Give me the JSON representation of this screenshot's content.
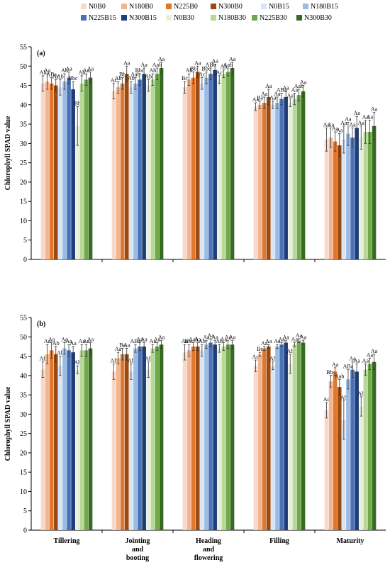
{
  "legend": {
    "entries": [
      {
        "name": "N0B0",
        "color": "#f7d9c9"
      },
      {
        "name": "N180B0",
        "color": "#f2b591"
      },
      {
        "name": "N225B0",
        "color": "#e0772f"
      },
      {
        "name": "N300B0",
        "color": "#9b4a12"
      },
      {
        "name": "N0B15",
        "color": "#d9e5f3"
      },
      {
        "name": "N180B15",
        "color": "#9bbbe3"
      },
      {
        "name": "N225B15",
        "color": "#4a72b8"
      },
      {
        "name": "N300B15",
        "color": "#1f3d78"
      },
      {
        "name": "N0B30",
        "color": "#e8f0dc"
      },
      {
        "name": "N180B30",
        "color": "#b9d79a"
      },
      {
        "name": "N225B30",
        "color": "#6fa94a"
      },
      {
        "name": "N300B30",
        "color": "#386b22"
      }
    ]
  },
  "chart_data": [
    {
      "type": "bar",
      "panel_label": "(a)",
      "ylabel": "Chlorophyll SPAD value",
      "ylim": [
        0,
        55
      ],
      "yticks": [
        0,
        5,
        10,
        15,
        20,
        25,
        30,
        35,
        40,
        45,
        50,
        55
      ],
      "categories": [
        "Tillering",
        "Jointing and booting",
        "Heading and flowering",
        "Filling",
        "Maturity"
      ],
      "series": [
        {
          "name": "N0B0",
          "values": [
            45.5,
            43.5,
            44.5,
            39.5,
            31.0
          ],
          "errors": [
            2.0,
            2.0,
            1.5,
            1.0,
            3.0
          ],
          "labels": [
            "Ab",
            "Ac",
            "Bc",
            "Aa",
            "Aa"
          ]
        },
        {
          "name": "N180B0",
          "values": [
            46.0,
            44.5,
            46.5,
            40.0,
            31.5
          ],
          "errors": [
            2.0,
            1.5,
            1.5,
            1.0,
            2.5
          ],
          "labels": [
            "Aa",
            "Ab",
            "Ab",
            "Ba",
            "Aa"
          ]
        },
        {
          "name": "N225B0",
          "values": [
            45.5,
            45.5,
            47.0,
            40.5,
            30.5
          ],
          "errors": [
            1.5,
            1.5,
            1.5,
            1.5,
            2.5
          ],
          "labels": [
            "ABa",
            "Bb",
            "Bb",
            "Aa",
            "Aa"
          ]
        },
        {
          "name": "N300B0",
          "values": [
            45.0,
            48.0,
            48.5,
            42.0,
            29.5
          ],
          "errors": [
            1.5,
            2.0,
            1.5,
            2.0,
            3.0
          ],
          "labels": [
            "Ac",
            "Aa",
            "Aa",
            "Aa",
            "Aa"
          ]
        },
        {
          "name": "N0B15",
          "values": [
            44.5,
            44.5,
            45.5,
            40.0,
            31.0
          ],
          "errors": [
            2.0,
            1.5,
            1.5,
            1.0,
            3.5
          ],
          "labels": [
            "Ab",
            "Ab",
            "Ac",
            "Aa",
            "Aa"
          ]
        },
        {
          "name": "N180B15",
          "values": [
            46.0,
            45.5,
            47.0,
            40.5,
            32.5
          ],
          "errors": [
            2.0,
            1.5,
            1.5,
            1.5,
            3.0
          ],
          "labels": [
            "Ab",
            "Aab",
            "Bbc",
            "Aa",
            "Aa"
          ]
        },
        {
          "name": "N225B15",
          "values": [
            47.0,
            46.5,
            48.0,
            41.5,
            31.5
          ],
          "errors": [
            1.5,
            1.5,
            1.5,
            1.5,
            2.5
          ],
          "labels": [
            "Aa",
            "Bbc",
            "ABb",
            "ABa",
            "Aa"
          ]
        },
        {
          "name": "N300B15",
          "values": [
            44.0,
            48.0,
            49.0,
            42.0,
            34.0
          ],
          "errors": [
            2.0,
            1.5,
            1.5,
            1.5,
            3.0
          ],
          "labels": [
            "Bbc",
            "Aa",
            "Aa",
            "Aa",
            "Aa"
          ]
        },
        {
          "name": "N0B30",
          "values": [
            34.5,
            45.0,
            46.5,
            40.5,
            31.5
          ],
          "errors": [
            5.0,
            1.5,
            1.0,
            1.0,
            3.0
          ],
          "labels": [
            "Bb",
            "Ab",
            "Ac",
            "Aa",
            "Aa"
          ]
        },
        {
          "name": "N180B30",
          "values": [
            45.5,
            46.5,
            48.0,
            41.5,
            33.0
          ],
          "errors": [
            2.0,
            1.5,
            1.0,
            1.5,
            3.0
          ],
          "labels": [
            "Ab",
            "Ab",
            "Ab",
            "Aa",
            "Aa"
          ]
        },
        {
          "name": "N225B30",
          "values": [
            46.5,
            48.0,
            48.5,
            42.5,
            33.0
          ],
          "errors": [
            1.5,
            1.5,
            1.0,
            1.5,
            3.0
          ],
          "labels": [
            "Aa",
            "Aab",
            "Aab",
            "Aab",
            "Aa"
          ]
        },
        {
          "name": "N300B30",
          "values": [
            47.0,
            49.5,
            49.5,
            43.5,
            34.5
          ],
          "errors": [
            1.5,
            1.5,
            1.5,
            1.5,
            3.5
          ],
          "labels": [
            "Aa",
            "Aa",
            "Aa",
            "Aa",
            "Aa"
          ]
        }
      ]
    },
    {
      "type": "bar",
      "panel_label": "(b)",
      "ylabel": "Chlorophyll SPAD value",
      "ylim": [
        0,
        55
      ],
      "yticks": [
        0,
        5,
        10,
        15,
        20,
        25,
        30,
        35,
        40,
        45,
        50,
        55
      ],
      "categories": [
        "Tillering",
        "Jointing and booting",
        "Heading and flowering",
        "Filling",
        "Maturity"
      ],
      "series": [
        {
          "name": "N0B0",
          "values": [
            41.5,
            41.0,
            46.0,
            42.5,
            31.0
          ],
          "errors": [
            2.0,
            2.0,
            2.0,
            1.5,
            2.0
          ],
          "labels": [
            "Ab",
            "Ab",
            "Aa",
            "Ad",
            "Ac"
          ]
        },
        {
          "name": "N180B0",
          "values": [
            45.5,
            44.5,
            46.5,
            45.5,
            38.5
          ],
          "errors": [
            2.5,
            1.5,
            1.5,
            0.5,
            1.5
          ],
          "labels": [
            "Aa",
            "Aa",
            "Bbc",
            "Bc",
            "Bbc"
          ]
        },
        {
          "name": "N225B0",
          "values": [
            46.5,
            45.5,
            47.5,
            47.0,
            41.0
          ],
          "errors": [
            2.0,
            1.5,
            1.0,
            0.5,
            1.0
          ],
          "labels": [
            "Aa",
            "Ba",
            "Aab",
            "Aa",
            "Aa"
          ]
        },
        {
          "name": "N300B0",
          "values": [
            45.5,
            45.5,
            47.5,
            47.5,
            37.0
          ],
          "errors": [
            2.0,
            1.5,
            1.0,
            0.5,
            2.0
          ],
          "labels": [
            "Ab",
            "Aa",
            "Aa",
            "Aa",
            "Aab"
          ]
        },
        {
          "name": "N0B15",
          "values": [
            42.5,
            41.0,
            46.5,
            42.5,
            28.5
          ],
          "errors": [
            2.5,
            2.0,
            1.5,
            1.0,
            5.0
          ],
          "labels": [
            "Ab",
            "Ab",
            "Ab",
            "Ab",
            "Ab"
          ]
        },
        {
          "name": "N180B15",
          "values": [
            47.0,
            47.0,
            48.0,
            47.5,
            39.0
          ],
          "errors": [
            1.5,
            1.0,
            1.0,
            0.5,
            2.5
          ],
          "labels": [
            "Aa",
            "ABa",
            "Aa",
            "Aa",
            "ABa"
          ]
        },
        {
          "name": "N225B15",
          "values": [
            46.5,
            47.5,
            48.5,
            48.0,
            41.5
          ],
          "errors": [
            1.5,
            1.0,
            1.0,
            0.5,
            2.0
          ],
          "labels": [
            "Aa",
            "Aa",
            "Aa",
            "Aa",
            "Aa"
          ]
        },
        {
          "name": "N300B15",
          "values": [
            46.0,
            47.5,
            48.0,
            48.5,
            41.0
          ],
          "errors": [
            1.5,
            1.0,
            1.0,
            0.5,
            2.0
          ],
          "labels": [
            "Aa",
            "Aa",
            "Aa",
            "Aa",
            "Aa"
          ]
        },
        {
          "name": "N0B30",
          "values": [
            41.5,
            41.5,
            47.0,
            43.0,
            32.0
          ],
          "errors": [
            1.0,
            2.0,
            1.0,
            2.5,
            2.5
          ],
          "labels": [
            "Ab",
            "Ab",
            "Ab",
            "Ab",
            "Ab"
          ]
        },
        {
          "name": "N180B30",
          "values": [
            46.5,
            47.0,
            47.5,
            48.0,
            41.5
          ],
          "errors": [
            1.5,
            1.0,
            1.0,
            0.5,
            1.5
          ],
          "labels": [
            "Aa",
            "Aa",
            "Aa",
            "Aa",
            "Aa"
          ]
        },
        {
          "name": "N225B30",
          "values": [
            46.5,
            47.5,
            48.0,
            49.0,
            43.0
          ],
          "errors": [
            1.5,
            1.0,
            1.0,
            0.5,
            1.5
          ],
          "labels": [
            "Aa",
            "Aa",
            "Aa",
            "Aa",
            "Aa"
          ]
        },
        {
          "name": "N300B30",
          "values": [
            47.0,
            48.0,
            48.0,
            48.5,
            43.5
          ],
          "errors": [
            1.5,
            1.0,
            1.0,
            0.5,
            2.0
          ],
          "labels": [
            "Aa",
            "Aa",
            "Aa",
            "Aa",
            "Aa"
          ]
        }
      ]
    }
  ]
}
